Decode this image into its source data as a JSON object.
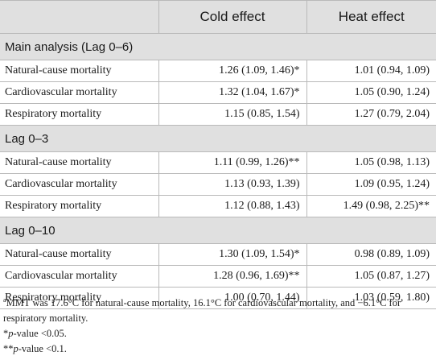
{
  "table": {
    "headers": [
      "",
      "Cold effect",
      "Heat effect"
    ],
    "sections": [
      {
        "title": "Main analysis (Lag 0–6)",
        "rows": [
          {
            "name": "Natural-cause mortality",
            "cold": "1.26 (1.09, 1.46)*",
            "heat": "1.01 (0.94, 1.09)"
          },
          {
            "name": "Cardiovascular mortality",
            "cold": "1.32 (1.04, 1.67)*",
            "heat": "1.05 (0.90, 1.24)"
          },
          {
            "name": "Respiratory mortality",
            "cold": "1.15 (0.85, 1.54)",
            "heat": "1.27 (0.79, 2.04)"
          }
        ]
      },
      {
        "title": "Lag 0–3",
        "rows": [
          {
            "name": "Natural-cause mortality",
            "cold": "1.11 (0.99, 1.26)**",
            "heat": "1.05 (0.98, 1.13)"
          },
          {
            "name": "Cardiovascular mortality",
            "cold": "1.13 (0.93, 1.39)",
            "heat": "1.09 (0.95, 1.24)"
          },
          {
            "name": "Respiratory mortality",
            "cold": "1.12 (0.88, 1.43)",
            "heat": "1.49 (0.98, 2.25)**"
          }
        ]
      },
      {
        "title": "Lag 0–10",
        "rows": [
          {
            "name": "Natural-cause mortality",
            "cold": "1.30 (1.09, 1.54)*",
            "heat": "0.98 (0.89, 1.09)"
          },
          {
            "name": "Cardiovascular mortality",
            "cold": "1.28 (0.96, 1.69)**",
            "heat": "1.05 (0.87, 1.27)"
          },
          {
            "name": "Respiratory mortality",
            "cold": "1.00 (0.70, 1.44)",
            "heat": "1.03 (0.59, 1.80)"
          }
        ]
      }
    ]
  },
  "footnotes": {
    "a_marker": "a",
    "a_text": "MMT was 17.6°C for natural-cause mortality, 16.1°C for cardiovascular mortality, and −6.1°C for respiratory mortality.",
    "p05_marker": "*",
    "p05_italic": "p",
    "p05_text": "-value <0.05.",
    "p1_marker": "**",
    "p1_italic": "p",
    "p1_text": "-value <0.1."
  }
}
